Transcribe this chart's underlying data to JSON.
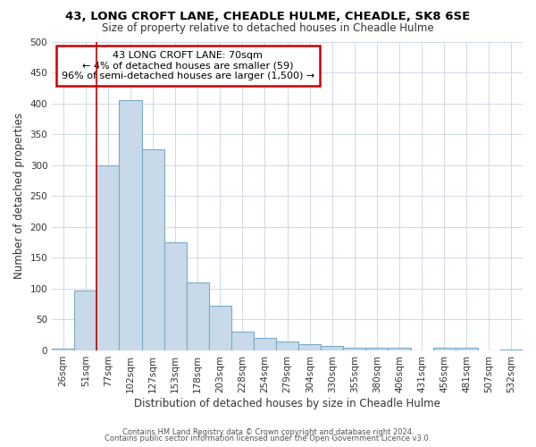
{
  "title1": "43, LONG CROFT LANE, CHEADLE HULME, CHEADLE, SK8 6SE",
  "title2": "Size of property relative to detached houses in Cheadle Hulme",
  "xlabel": "Distribution of detached houses by size in Cheadle Hulme",
  "ylabel": "Number of detached properties",
  "categories": [
    "26sqm",
    "51sqm",
    "77sqm",
    "102sqm",
    "127sqm",
    "153sqm",
    "178sqm",
    "203sqm",
    "228sqm",
    "254sqm",
    "279sqm",
    "304sqm",
    "330sqm",
    "355sqm",
    "380sqm",
    "406sqm",
    "431sqm",
    "456sqm",
    "481sqm",
    "507sqm",
    "532sqm"
  ],
  "values": [
    3,
    97,
    300,
    405,
    325,
    175,
    110,
    72,
    30,
    20,
    15,
    10,
    7,
    4,
    4,
    4,
    0,
    4,
    4,
    0,
    2
  ],
  "bar_color": "#c8daea",
  "bar_edge_color": "#7aaac8",
  "red_line_index": 2,
  "annotation_title": "43 LONG CROFT LANE: 70sqm",
  "annotation_line2": "← 4% of detached houses are smaller (59)",
  "annotation_line3": "96% of semi-detached houses are larger (1,500) →",
  "annotation_box_color": "#ffffff",
  "annotation_box_edge": "#cc0000",
  "red_line_color": "#cc0000",
  "footer1": "Contains HM Land Registry data © Crown copyright and database right 2024.",
  "footer2": "Contains public sector information licensed under the Open Government Licence v3.0.",
  "ylim": [
    0,
    500
  ],
  "background_color": "#ffffff",
  "plot_bg_color": "#ffffff",
  "grid_color": "#d0d8e8"
}
